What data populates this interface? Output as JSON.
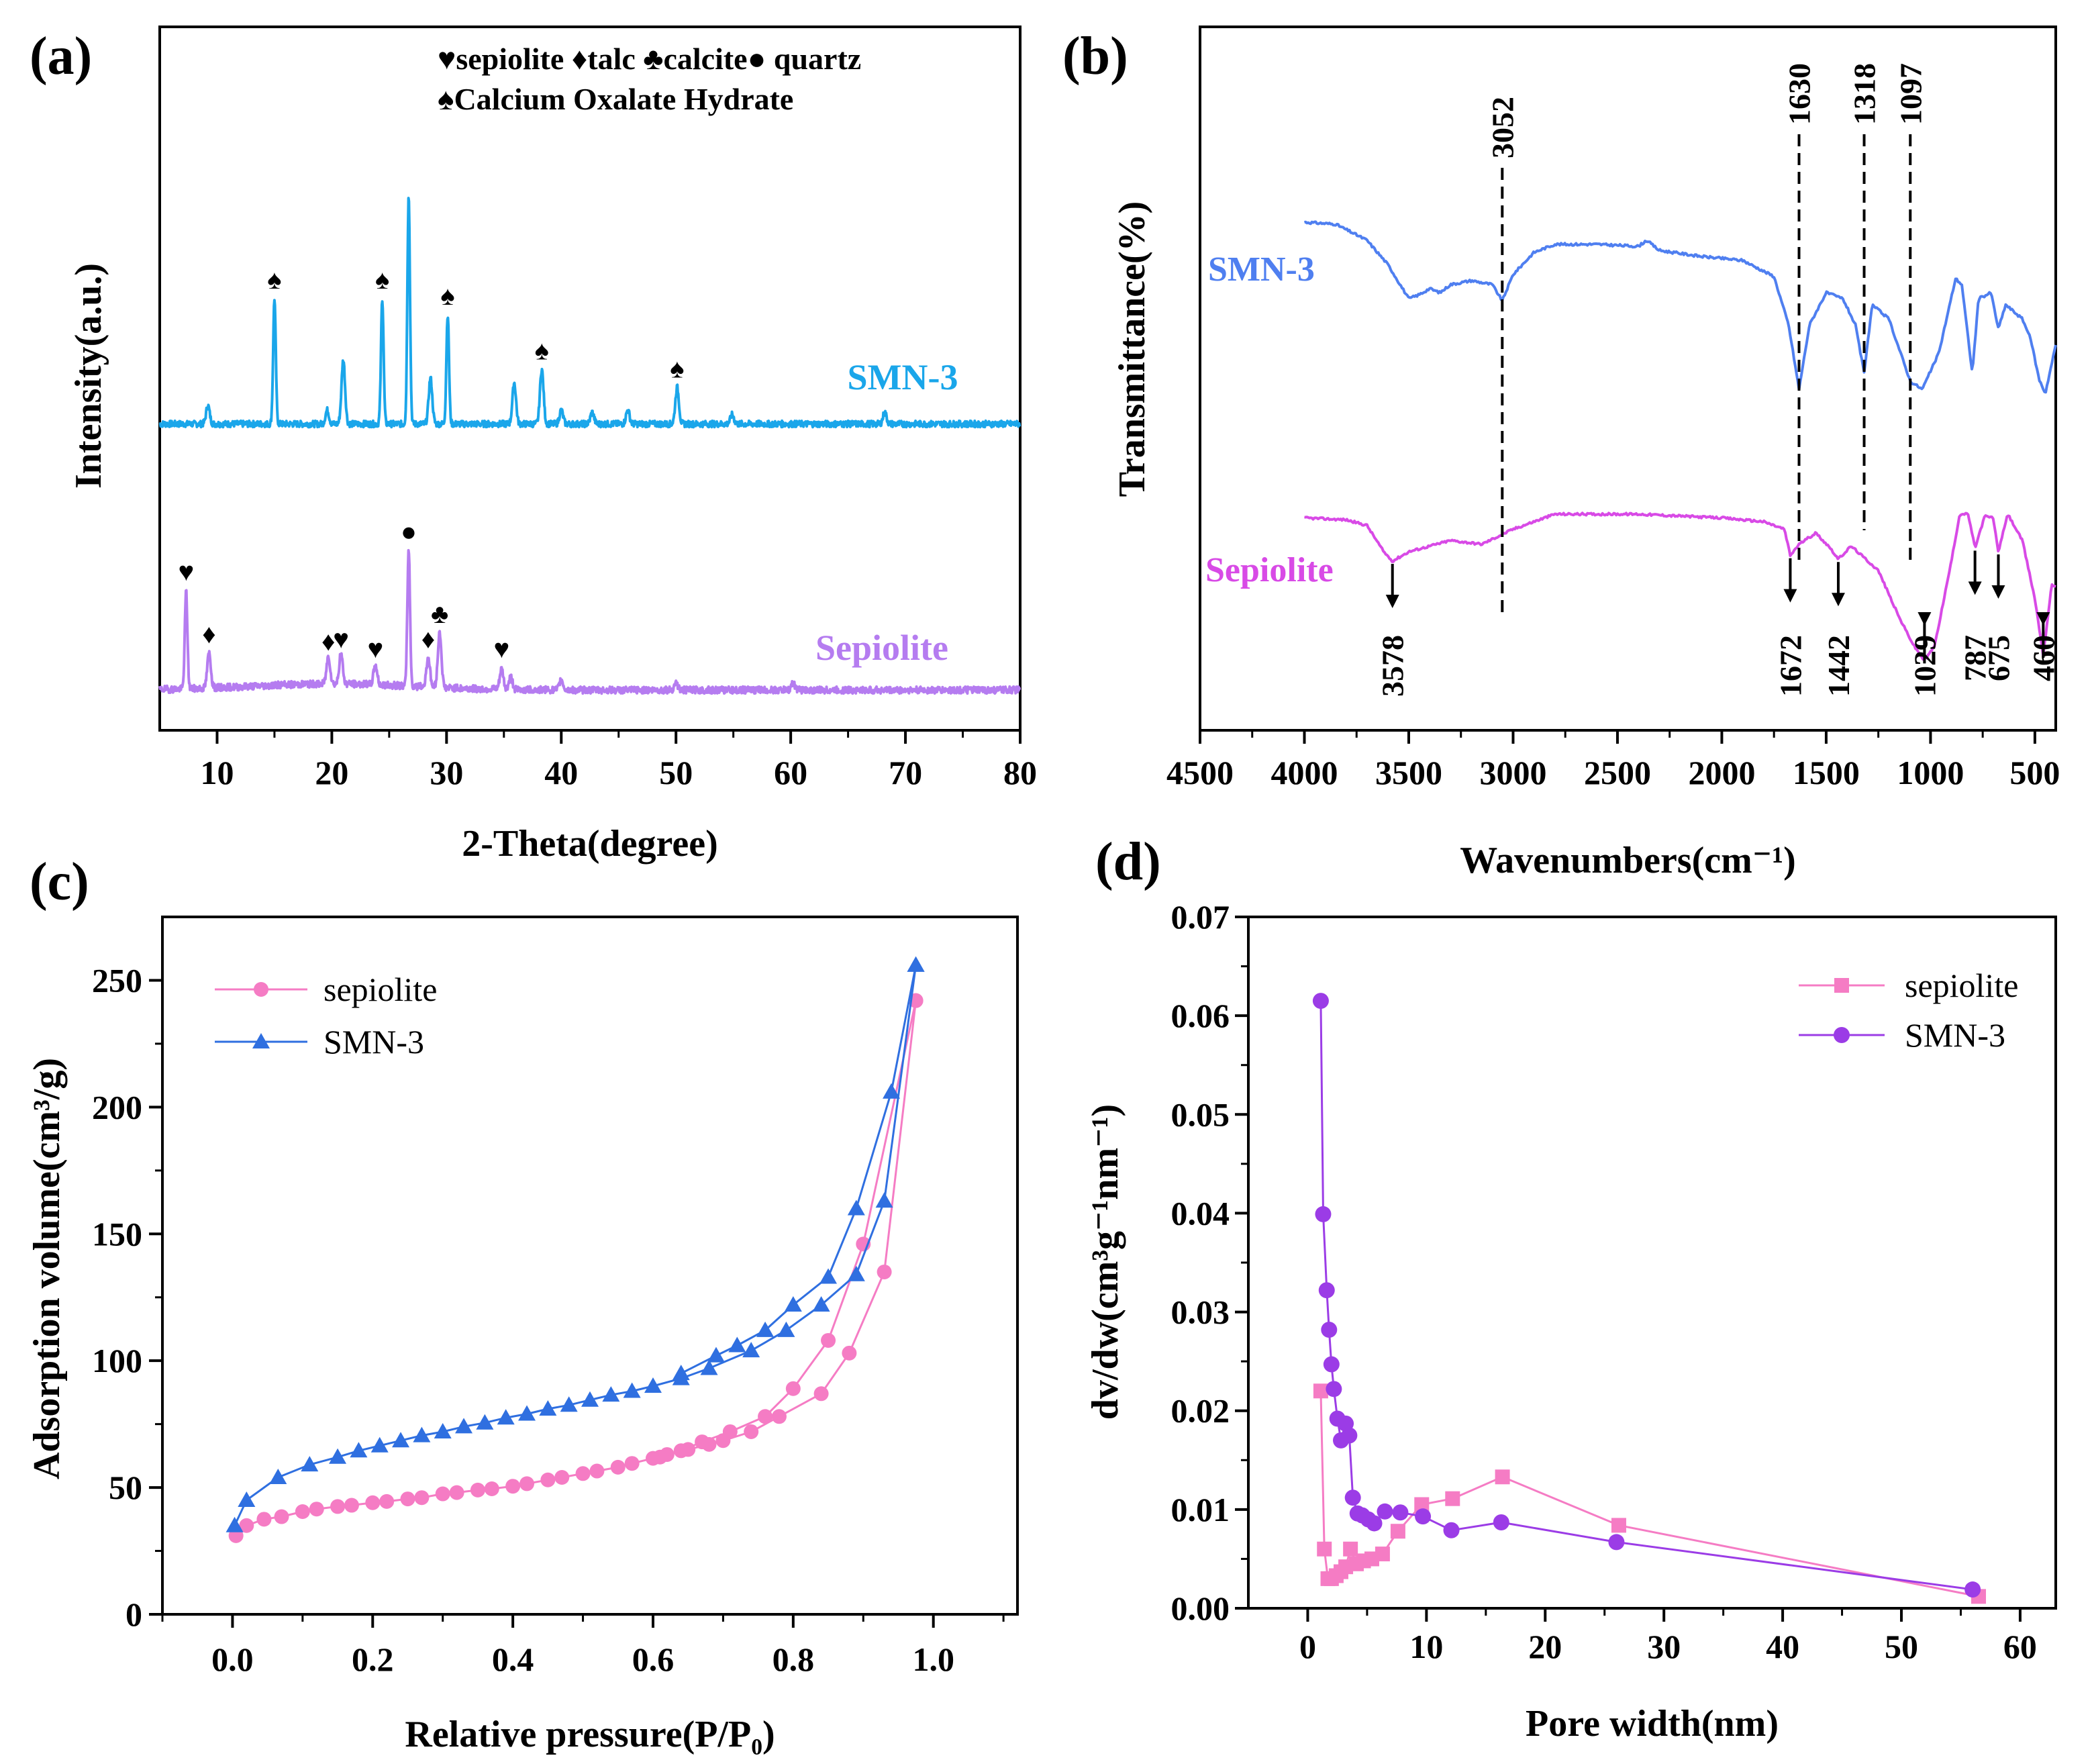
{
  "colors": {
    "axis": "#000000",
    "xrd_smn3": "#1aa6ea",
    "xrd_sepiolite": "#b57cf0",
    "ftir_smn3": "#4f7ff0",
    "ftir_sepiolite": "#d84ae6",
    "bet_sepiolite": "#f57cc4",
    "bet_smn3": "#2f6fe0",
    "psd_sepiolite": "#f57cc4",
    "psd_smn3": "#9b3ce6"
  },
  "chart_data": [
    {
      "panel": "(a)",
      "type": "line",
      "title": "",
      "xlabel": "2-Theta(degree)",
      "ylabel": "Intensity(a.u.)",
      "xlim": [
        5,
        80
      ],
      "xticks": [
        "10",
        "20",
        "30",
        "40",
        "50",
        "60",
        "70",
        "80"
      ],
      "legend": {
        "line1": [
          "♥sepiolite",
          "♦talc",
          "♣calcite",
          "● quartz"
        ],
        "line2": "♠Calcium Oxalate Hydrate"
      },
      "series": [
        {
          "name": "SMN-3",
          "baseline": 0.0,
          "peaks": [
            [
              9.2,
              0.08
            ],
            [
              15.0,
              0.55
            ],
            [
              19.6,
              0.06
            ],
            [
              21.0,
              0.28
            ],
            [
              24.4,
              0.55
            ],
            [
              26.7,
              1.0
            ],
            [
              28.6,
              0.2
            ],
            [
              30.1,
              0.48
            ],
            [
              35.9,
              0.18
            ],
            [
              38.3,
              0.24
            ],
            [
              40.0,
              0.06
            ],
            [
              42.7,
              0.05
            ],
            [
              45.8,
              0.06
            ],
            [
              50.1,
              0.16
            ],
            [
              54.9,
              0.04
            ],
            [
              68.2,
              0.05
            ]
          ]
        },
        {
          "name": "Sepiolite",
          "baseline": 0.0,
          "peaks": [
            [
              7.3,
              0.39
            ],
            [
              9.3,
              0.14
            ],
            [
              19.7,
              0.11
            ],
            [
              20.8,
              0.12
            ],
            [
              23.8,
              0.08
            ],
            [
              26.7,
              0.55
            ],
            [
              28.4,
              0.12
            ],
            [
              29.4,
              0.22
            ],
            [
              34.8,
              0.08
            ],
            [
              35.6,
              0.05
            ],
            [
              40.0,
              0.04
            ],
            [
              50.0,
              0.03
            ],
            [
              60.2,
              0.03
            ]
          ]
        }
      ],
      "peak_markers": [
        {
          "series": "SMN-3",
          "x": 15.0,
          "symbol": "♠"
        },
        {
          "series": "SMN-3",
          "x": 24.4,
          "symbol": "♠"
        },
        {
          "series": "SMN-3",
          "x": 30.1,
          "symbol": "♠"
        },
        {
          "series": "SMN-3",
          "x": 38.3,
          "symbol": "♠"
        },
        {
          "series": "SMN-3",
          "x": 50.1,
          "symbol": "♠"
        },
        {
          "series": "Sepiolite",
          "x": 7.3,
          "symbol": "♥"
        },
        {
          "series": "Sepiolite",
          "x": 9.3,
          "symbol": "♦"
        },
        {
          "series": "Sepiolite",
          "x": 19.7,
          "symbol": "♦"
        },
        {
          "series": "Sepiolite",
          "x": 20.8,
          "symbol": "♥"
        },
        {
          "series": "Sepiolite",
          "x": 23.8,
          "symbol": "♥"
        },
        {
          "series": "Sepiolite",
          "x": 26.7,
          "symbol": "●"
        },
        {
          "series": "Sepiolite",
          "x": 28.4,
          "symbol": "♦"
        },
        {
          "series": "Sepiolite",
          "x": 29.4,
          "symbol": "♣"
        },
        {
          "series": "Sepiolite",
          "x": 34.8,
          "symbol": "♥"
        }
      ]
    },
    {
      "panel": "(b)",
      "type": "line",
      "title": "",
      "xlabel": "Wavenumbers(cm⁻¹)",
      "ylabel": "Transmittance(%)",
      "xlim": [
        4500,
        400
      ],
      "xticks": [
        "4500",
        "4000",
        "3500",
        "3000",
        "2500",
        "2000",
        "1500",
        "1000",
        "500"
      ],
      "series": [
        {
          "name": "SMN-3",
          "points": [
            [
              4000,
              0.93
            ],
            [
              3850,
              0.92
            ],
            [
              3700,
              0.84
            ],
            [
              3600,
              0.72
            ],
            [
              3500,
              0.55
            ],
            [
              3450,
              0.57
            ],
            [
              3400,
              0.6
            ],
            [
              3350,
              0.58
            ],
            [
              3300,
              0.62
            ],
            [
              3200,
              0.64
            ],
            [
              3100,
              0.62
            ],
            [
              3052,
              0.54
            ],
            [
              3000,
              0.67
            ],
            [
              2900,
              0.78
            ],
            [
              2800,
              0.82
            ],
            [
              2600,
              0.82
            ],
            [
              2400,
              0.81
            ],
            [
              2360,
              0.84
            ],
            [
              2300,
              0.79
            ],
            [
              2100,
              0.76
            ],
            [
              1900,
              0.74
            ],
            [
              1750,
              0.66
            ],
            [
              1680,
              0.42
            ],
            [
              1630,
              0.1
            ],
            [
              1580,
              0.42
            ],
            [
              1500,
              0.58
            ],
            [
              1420,
              0.55
            ],
            [
              1360,
              0.42
            ],
            [
              1318,
              0.18
            ],
            [
              1280,
              0.52
            ],
            [
              1200,
              0.45
            ],
            [
              1150,
              0.3
            ],
            [
              1097,
              0.14
            ],
            [
              1040,
              0.1
            ],
            [
              960,
              0.28
            ],
            [
              880,
              0.65
            ],
            [
              850,
              0.62
            ],
            [
              800,
              0.18
            ],
            [
              770,
              0.55
            ],
            [
              710,
              0.58
            ],
            [
              675,
              0.4
            ],
            [
              640,
              0.52
            ],
            [
              560,
              0.45
            ],
            [
              520,
              0.35
            ],
            [
              480,
              0.15
            ],
            [
              450,
              0.08
            ],
            [
              400,
              0.32
            ]
          ]
        },
        {
          "name": "Sepiolite",
          "points": [
            [
              4000,
              0.78
            ],
            [
              3800,
              0.77
            ],
            [
              3700,
              0.74
            ],
            [
              3620,
              0.6
            ],
            [
              3578,
              0.55
            ],
            [
              3500,
              0.6
            ],
            [
              3300,
              0.66
            ],
            [
              3150,
              0.64
            ],
            [
              3000,
              0.72
            ],
            [
              2800,
              0.8
            ],
            [
              2600,
              0.8
            ],
            [
              2400,
              0.8
            ],
            [
              2200,
              0.79
            ],
            [
              2000,
              0.78
            ],
            [
              1800,
              0.76
            ],
            [
              1700,
              0.72
            ],
            [
              1672,
              0.58
            ],
            [
              1630,
              0.64
            ],
            [
              1550,
              0.7
            ],
            [
              1480,
              0.62
            ],
            [
              1442,
              0.56
            ],
            [
              1380,
              0.63
            ],
            [
              1250,
              0.5
            ],
            [
              1150,
              0.25
            ],
            [
              1080,
              0.1
            ],
            [
              1029,
              0.02
            ],
            [
              980,
              0.1
            ],
            [
              900,
              0.55
            ],
            [
              860,
              0.8
            ],
            [
              820,
              0.8
            ],
            [
              787,
              0.62
            ],
            [
              740,
              0.79
            ],
            [
              700,
              0.78
            ],
            [
              675,
              0.6
            ],
            [
              630,
              0.8
            ],
            [
              560,
              0.66
            ],
            [
              500,
              0.35
            ],
            [
              460,
              0.05
            ],
            [
              420,
              0.42
            ]
          ]
        }
      ],
      "reference_lines": [
        "3052",
        "1630",
        "1318",
        "1097"
      ],
      "reference_line_values": [
        3052,
        1630,
        1318,
        1097
      ],
      "arrow_labels": [
        "3578",
        "1672",
        "1442",
        "1029",
        "787",
        "675",
        "460"
      ],
      "arrow_values": [
        3578,
        1672,
        1442,
        1029,
        787,
        675,
        460
      ]
    },
    {
      "panel": "(c)",
      "type": "line",
      "title": "",
      "xlabel": "Relative pressure(P/P₀)",
      "ylabel": "Adsorption volume(cm³/g)",
      "xlim": [
        -0.1,
        1.12
      ],
      "ylim": [
        0,
        275
      ],
      "xticks": [
        "0.0",
        "0.2",
        "0.4",
        "0.6",
        "0.8",
        "1.0"
      ],
      "yticks": [
        "0",
        "50",
        "100",
        "150",
        "200",
        "250"
      ],
      "legend_entries": [
        "sepiolite",
        "SMN-3"
      ],
      "series": [
        {
          "name": "sepiolite",
          "marker": "circle",
          "adsorption": {
            "x": [
              0.005,
              0.02,
              0.045,
              0.07,
              0.1,
              0.12,
              0.15,
              0.17,
              0.2,
              0.22,
              0.25,
              0.27,
              0.3,
              0.32,
              0.35,
              0.37,
              0.4,
              0.42,
              0.45,
              0.47,
              0.5,
              0.52,
              0.55,
              0.57,
              0.6,
              0.62,
              0.65,
              0.68,
              0.7,
              0.74,
              0.78,
              0.84,
              0.88,
              0.93,
              0.975
            ],
            "y": [
              31,
              35,
              37.5,
              38.5,
              40.5,
              41.5,
              42.5,
              43,
              44,
              44.5,
              45.5,
              46,
              47.5,
              48,
              49,
              49.5,
              50.5,
              51.5,
              53,
              54,
              55.5,
              56.5,
              58,
              59.5,
              61.5,
              63,
              65,
              67,
              68.5,
              72,
              78,
              87,
              103,
              135,
              242
            ]
          },
          "desorption": {
            "x": [
              0.975,
              0.9,
              0.85,
              0.8,
              0.76,
              0.71,
              0.67,
              0.64,
              0.61
            ],
            "y": [
              242,
              146,
              108,
              89,
              78,
              72,
              68,
              64.5,
              62
            ]
          }
        },
        {
          "name": "SMN-3",
          "marker": "triangle",
          "adsorption": {
            "x": [
              0.003,
              0.02,
              0.065,
              0.11,
              0.15,
              0.18,
              0.21,
              0.24,
              0.27,
              0.3,
              0.33,
              0.36,
              0.39,
              0.42,
              0.45,
              0.48,
              0.51,
              0.54,
              0.57,
              0.6,
              0.64,
              0.68,
              0.74,
              0.79,
              0.84,
              0.89,
              0.93,
              0.975
            ],
            "y": [
              35,
              45,
              54,
              59,
              62,
              64.5,
              66.5,
              68.5,
              70.5,
              72,
              74,
              75.5,
              77.5,
              79,
              81,
              82.5,
              84.5,
              86.5,
              88,
              90,
              93,
              97,
              104,
              112,
              122,
              134,
              163,
              256
            ]
          },
          "desorption": {
            "x": [
              0.975,
              0.94,
              0.89,
              0.85,
              0.8,
              0.76,
              0.72,
              0.69,
              0.64
            ],
            "y": [
              256,
              206,
              160,
              133,
              122,
              112,
              106,
              102,
              95
            ]
          }
        }
      ]
    },
    {
      "panel": "(d)",
      "type": "line",
      "title": "",
      "xlabel": "Pore width(nm)",
      "ylabel": "dv/dw(cm³g⁻¹nm⁻¹)",
      "xlim": [
        -5,
        63
      ],
      "ylim": [
        0,
        0.07
      ],
      "xticks": [
        "0",
        "10",
        "20",
        "30",
        "40",
        "50",
        "60"
      ],
      "yticks": [
        "0.00",
        "0.01",
        "0.02",
        "0.03",
        "0.04",
        "0.05",
        "0.06",
        "0.07"
      ],
      "legend_entries": [
        "sepiolite",
        "SMN-3"
      ],
      "series": [
        {
          "name": "sepiolite",
          "marker": "square",
          "x": [
            1.1,
            1.4,
            1.7,
            2.0,
            2.4,
            2.8,
            3.2,
            3.6,
            4.1,
            4.7,
            5.4,
            6.3,
            7.6,
            9.6,
            12.2,
            16.4,
            26.2,
            56.5
          ],
          "y": [
            0.022,
            0.006,
            0.003,
            0.003,
            0.0033,
            0.0037,
            0.0042,
            0.006,
            0.0045,
            0.0048,
            0.005,
            0.0055,
            0.0078,
            0.0105,
            0.0111,
            0.0133,
            0.0084,
            0.0012
          ]
        },
        {
          "name": "SMN-3",
          "marker": "circle",
          "x": [
            1.1,
            1.3,
            1.6,
            1.8,
            2.0,
            2.2,
            2.5,
            2.8,
            3.2,
            3.5,
            3.8,
            4.2,
            4.6,
            5.1,
            5.6,
            6.5,
            7.8,
            9.7,
            12.1,
            16.3,
            26.0,
            56.0
          ],
          "y": [
            0.0615,
            0.0399,
            0.0322,
            0.0282,
            0.0247,
            0.0222,
            0.0192,
            0.017,
            0.0187,
            0.0175,
            0.0112,
            0.0096,
            0.0094,
            0.009,
            0.0086,
            0.0098,
            0.0097,
            0.0093,
            0.0079,
            0.0087,
            0.0067,
            0.0019
          ]
        }
      ]
    }
  ],
  "panels": {
    "a": {
      "label": "(a)",
      "series_labels": [
        "SMN-3",
        "Sepiolite"
      ],
      "legend_line1": "♥sepiolite  ♦talc  ♣calcite● quartz",
      "legend_line2": "♠Calcium Oxalate Hydrate",
      "xlabel": "2-Theta(degree)",
      "ylabel": "Intensity(a.u.)"
    },
    "b": {
      "label": "(b)",
      "series_labels": [
        "SMN-3",
        "Sepiolite"
      ],
      "xlabel": "Wavenumbers(cm⁻¹)",
      "ylabel": "Transmittance(%)"
    },
    "c": {
      "label": "(c)",
      "xlabel": "Relative pressure(P/P₀)",
      "ylabel": "Adsorption volume(cm³/g)"
    },
    "d": {
      "label": "(d)",
      "xlabel": "Pore width(nm)",
      "ylabel": "dv/dw(cm³g⁻¹nm⁻¹)"
    }
  }
}
